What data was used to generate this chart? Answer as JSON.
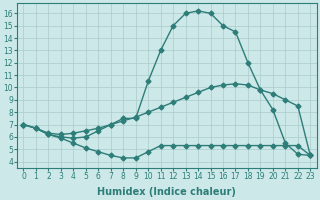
{
  "xlabel": "Humidex (Indice chaleur)",
  "bg_color": "#cce8e8",
  "line_color": "#2d7d78",
  "xlim": [
    -0.5,
    23.5
  ],
  "ylim": [
    3.5,
    16.8
  ],
  "yticks": [
    4,
    5,
    6,
    7,
    8,
    9,
    10,
    11,
    12,
    13,
    14,
    15,
    16
  ],
  "xticks": [
    0,
    1,
    2,
    3,
    4,
    5,
    6,
    7,
    8,
    9,
    10,
    11,
    12,
    13,
    14,
    15,
    16,
    17,
    18,
    19,
    20,
    21,
    22,
    23
  ],
  "line1_x": [
    0,
    1,
    2,
    3,
    4,
    5,
    6,
    7,
    8,
    9,
    10,
    11,
    12,
    13,
    14,
    15,
    16,
    17,
    18,
    19,
    20,
    21,
    22,
    23
  ],
  "line1_y": [
    7.0,
    6.7,
    6.2,
    5.9,
    5.5,
    5.1,
    4.8,
    4.5,
    4.3,
    4.3,
    4.8,
    5.3,
    5.3,
    5.3,
    5.3,
    5.3,
    5.3,
    5.3,
    5.3,
    5.3,
    5.3,
    5.3,
    5.3,
    4.5
  ],
  "line2_x": [
    0,
    1,
    2,
    3,
    4,
    5,
    6,
    7,
    8,
    9,
    10,
    11,
    12,
    13,
    14,
    15,
    16,
    17,
    18,
    19,
    20,
    21,
    22,
    23
  ],
  "line2_y": [
    7.0,
    6.7,
    6.2,
    6.0,
    5.9,
    6.0,
    6.5,
    7.0,
    7.5,
    7.5,
    10.5,
    13.0,
    15.0,
    16.0,
    16.2,
    16.0,
    15.0,
    14.5,
    12.0,
    9.8,
    8.2,
    5.5,
    4.6,
    4.5
  ],
  "line3_x": [
    0,
    1,
    2,
    3,
    4,
    5,
    6,
    7,
    8,
    9,
    10,
    11,
    12,
    13,
    14,
    15,
    16,
    17,
    18,
    19,
    20,
    21,
    22,
    23
  ],
  "line3_y": [
    7.0,
    6.7,
    6.3,
    6.2,
    6.3,
    6.5,
    6.7,
    7.0,
    7.3,
    7.6,
    8.0,
    8.4,
    8.8,
    9.2,
    9.6,
    10.0,
    10.2,
    10.3,
    10.2,
    9.8,
    9.5,
    9.0,
    8.5,
    4.5
  ],
  "marker": "D",
  "markersize": 2.5,
  "linewidth": 1.0,
  "tick_fontsize": 5.5,
  "label_fontsize": 7,
  "grid_color": "#aacccc",
  "grid_linewidth": 0.5
}
